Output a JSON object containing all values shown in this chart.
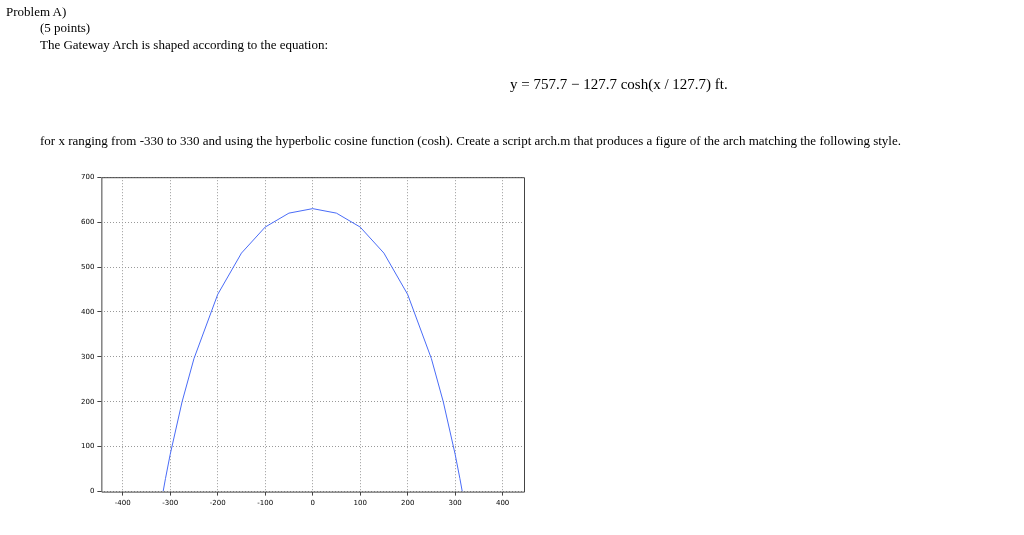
{
  "chart_data": {
    "type": "line",
    "annotations": [
      "Problem A)",
      "(5 points)",
      "The Gateway Arch is shaped according to the equation:",
      "y = 757.7 − 127.7 cosh(x / 127.7) ft.",
      "for x ranging from -330 to 330 and using the hyperbolic cosine function (cosh). Create a script arch.m that produces a figure of the arch matching the following style."
    ],
    "series": [
      {
        "color": "#4a6cf7",
        "x": [
          -315,
          -310,
          -300,
          -275,
          -250,
          -200,
          -150,
          -100,
          -50,
          0,
          50,
          100,
          150,
          200,
          250,
          275,
          300,
          310,
          315
        ],
        "values": [
          0,
          29,
          83,
          200,
          296,
          439,
          531,
          589,
          620,
          630,
          620,
          589,
          531,
          439,
          296,
          200,
          83,
          29,
          0
        ]
      }
    ],
    "xlim": [
      -445,
      445
    ],
    "xticks": [
      -400,
      -300,
      -200,
      -100,
      0,
      100,
      200,
      300,
      400
    ],
    "ylim": [
      0,
      700
    ],
    "yticks": [
      0,
      100,
      200,
      300,
      400,
      500,
      600,
      700
    ],
    "grid": true,
    "marker": "none",
    "line_style": "solid",
    "legend": false
  }
}
